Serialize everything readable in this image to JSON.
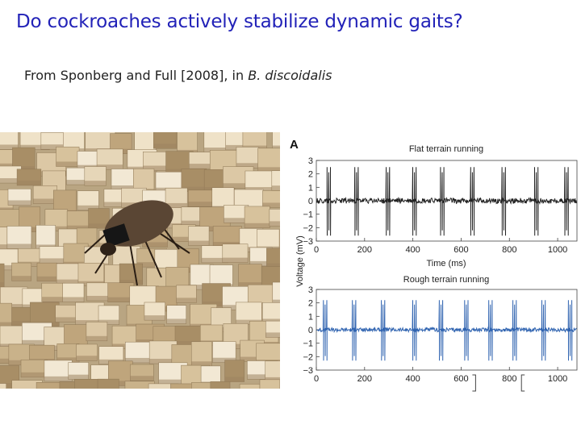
{
  "slide": {
    "title": "Do cockroaches actively stabilize dynamic gaits?",
    "citation_prefix": "From Sponberg and Full [2008], in ",
    "citation_species": "B. discoidalis"
  },
  "photo": {
    "icon": "cockroach-on-blocks-photo"
  },
  "figure": {
    "panel_label": "A",
    "shared_ylabel": "Voltage (mV)",
    "colors": {
      "flat": "#222222",
      "rough": "#2f63b0"
    }
  },
  "chart_data": [
    {
      "type": "line",
      "title": "Flat terrain running",
      "xlabel": "Time (ms)",
      "ylabel": "Voltage (mV)",
      "xlim": [
        0,
        1080
      ],
      "ylim": [
        -3,
        3
      ],
      "xticks": [
        0,
        200,
        400,
        600,
        800,
        1000
      ],
      "yticks": [
        3,
        2,
        1,
        0,
        -1,
        -2,
        -3
      ],
      "spike_bursts_ms": [
        45,
        160,
        290,
        400,
        515,
        640,
        770,
        905,
        1030
      ],
      "spike_amplitude_mV": [
        2.5,
        -2.6
      ],
      "baseline_noise_mV": 0.2
    },
    {
      "type": "line",
      "title": "Rough terrain running",
      "xlabel": "",
      "ylabel": "Voltage (mV)",
      "xlim": [
        0,
        1080
      ],
      "ylim": [
        -3,
        3
      ],
      "xticks": [
        0,
        200,
        400,
        600,
        800,
        1000
      ],
      "yticks": [
        3,
        2,
        1,
        0,
        -1,
        -2,
        -3
      ],
      "spike_bursts_ms": [
        30,
        150,
        270,
        400,
        510,
        615,
        715,
        815,
        935,
        1045
      ],
      "spike_amplitude_mV": [
        2.2,
        -2.3
      ],
      "baseline_noise_mV": 0.15,
      "bracket_marks_ms": [
        660,
        850
      ]
    }
  ]
}
